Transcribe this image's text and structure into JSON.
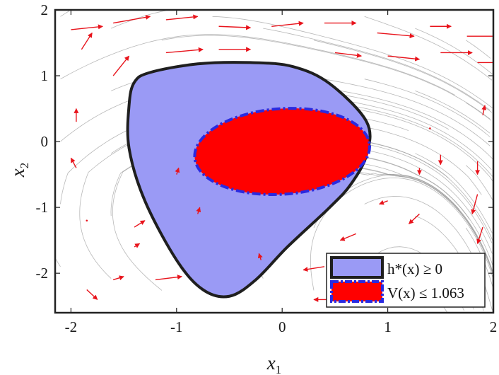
{
  "chart_data": {
    "type": "area",
    "xlabel": "x",
    "xlabel_sub": "1",
    "ylabel": "x",
    "ylabel_sub": "2",
    "xlim": [
      -2.15,
      2.0
    ],
    "ylim": [
      -2.6,
      2.0
    ],
    "xticks": [
      -2,
      -1,
      0,
      1,
      2
    ],
    "yticks": [
      -2,
      -1,
      0,
      1,
      2
    ],
    "xtick_labels": [
      "-2",
      "-1",
      "0",
      "1",
      "2"
    ],
    "ytick_labels": [
      "-2",
      "-1",
      "0",
      "1",
      "2"
    ],
    "grid": false,
    "legend_placement": "bottom-right",
    "series": [
      {
        "name": "h*(x) ≥ 0",
        "kind": "region",
        "fill": "#9a9af5",
        "stroke": "#1f1f1f",
        "dash": "solid",
        "boundary": [
          [
            -1.25,
            1.05
          ],
          [
            -0.8,
            1.18
          ],
          [
            -0.3,
            1.2
          ],
          [
            0.1,
            1.14
          ],
          [
            0.45,
            0.88
          ],
          [
            0.8,
            0.3
          ],
          [
            0.8,
            -0.2
          ],
          [
            0.65,
            -0.65
          ],
          [
            0.45,
            -1.0
          ],
          [
            0.05,
            -1.6
          ],
          [
            -0.25,
            -2.1
          ],
          [
            -0.5,
            -2.35
          ],
          [
            -0.75,
            -2.25
          ],
          [
            -1.0,
            -1.8
          ],
          [
            -1.3,
            -0.9
          ],
          [
            -1.45,
            -0.1
          ],
          [
            -1.45,
            0.55
          ],
          [
            -1.4,
            0.9
          ]
        ]
      },
      {
        "name": "V(x) ≤ 1.063",
        "kind": "ellipse",
        "fill": "#ff0000",
        "stroke": "#2a2ae0",
        "dash": "dash-dot",
        "center": [
          0.0,
          -0.15
        ],
        "rx": 0.83,
        "ry": 0.65
      }
    ],
    "vector_field": {
      "color": "#e8141c",
      "arrows": [
        [
          -2.0,
          1.7,
          0.3,
          0.05
        ],
        [
          -1.6,
          1.8,
          0.35,
          0.1
        ],
        [
          -1.1,
          1.85,
          0.3,
          0.05
        ],
        [
          -0.6,
          1.75,
          0.3,
          -0.02
        ],
        [
          -0.1,
          1.75,
          0.3,
          0.05
        ],
        [
          0.4,
          1.8,
          0.3,
          0.0
        ],
        [
          0.9,
          1.65,
          0.35,
          -0.05
        ],
        [
          1.4,
          1.75,
          0.2,
          0.0
        ],
        [
          1.75,
          1.6,
          0.3,
          0.0
        ],
        [
          -1.9,
          1.4,
          0.1,
          0.25
        ],
        [
          -1.6,
          1.0,
          0.15,
          0.3
        ],
        [
          -1.1,
          1.35,
          0.35,
          0.05
        ],
        [
          -0.6,
          1.4,
          0.3,
          0.0
        ],
        [
          0.5,
          1.35,
          0.25,
          -0.05
        ],
        [
          1.0,
          1.3,
          0.3,
          -0.05
        ],
        [
          1.5,
          1.35,
          0.3,
          0.0
        ],
        [
          1.85,
          1.2,
          0.3,
          0.0
        ],
        [
          -1.95,
          0.3,
          0.0,
          0.2
        ],
        [
          -1.95,
          -0.4,
          -0.05,
          0.15
        ],
        [
          1.9,
          0.4,
          0.02,
          0.15
        ],
        [
          1.4,
          0.2,
          0.0,
          0.0
        ],
        [
          1.5,
          -0.2,
          0.0,
          -0.15
        ],
        [
          1.85,
          -0.3,
          0.0,
          -0.2
        ],
        [
          1.85,
          -0.8,
          -0.05,
          -0.3
        ],
        [
          1.9,
          -1.3,
          -0.05,
          -0.25
        ],
        [
          1.9,
          -1.8,
          -0.1,
          -0.2
        ],
        [
          1.3,
          -0.4,
          0.0,
          -0.1
        ],
        [
          1.3,
          -1.1,
          -0.1,
          -0.15
        ],
        [
          1.0,
          -0.9,
          -0.08,
          -0.05
        ],
        [
          -1.85,
          -1.2,
          0.0,
          0.0
        ],
        [
          -1.4,
          -1.6,
          0.05,
          0.05
        ],
        [
          -1.6,
          -2.1,
          0.1,
          0.05
        ],
        [
          -1.85,
          -2.25,
          0.1,
          -0.15
        ],
        [
          -1.2,
          -2.1,
          0.25,
          0.05
        ],
        [
          -1.4,
          -1.3,
          0.1,
          0.1
        ],
        [
          0.7,
          -1.4,
          -0.15,
          -0.1
        ],
        [
          0.4,
          -1.9,
          -0.2,
          -0.05
        ],
        [
          0.5,
          -2.4,
          -0.2,
          0.0
        ],
        [
          -1.0,
          -0.5,
          0.02,
          0.1
        ],
        [
          -0.8,
          -1.1,
          0.02,
          0.1
        ],
        [
          -0.2,
          -1.8,
          -0.02,
          0.1
        ]
      ]
    }
  }
}
